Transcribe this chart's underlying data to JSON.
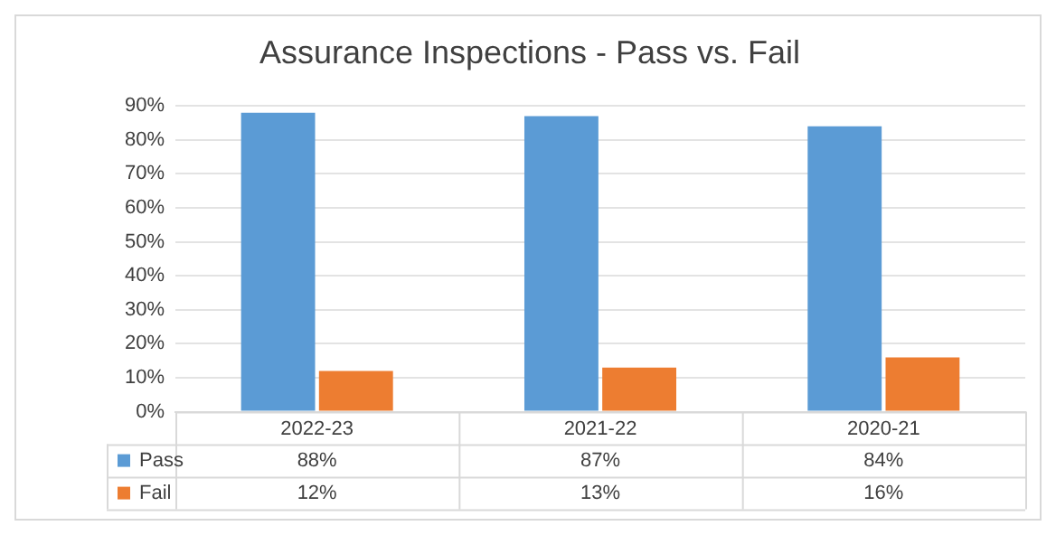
{
  "chart_data": {
    "type": "bar",
    "title": "Assurance Inspections - Pass vs. Fail",
    "categories": [
      "2022-23",
      "2021-22",
      "2020-21"
    ],
    "series": [
      {
        "name": "Pass",
        "color": "#5b9bd5",
        "values": [
          88,
          87,
          84
        ],
        "value_labels": [
          "88%",
          "87%",
          "84%"
        ]
      },
      {
        "name": "Fail",
        "color": "#ed7d31",
        "values": [
          12,
          13,
          16
        ],
        "value_labels": [
          "12%",
          "13%",
          "16%"
        ]
      }
    ],
    "ylim": [
      0,
      90
    ],
    "yticks": [
      {
        "value": 0,
        "label": "0%"
      },
      {
        "value": 10,
        "label": "10%"
      },
      {
        "value": 20,
        "label": "20%"
      },
      {
        "value": 30,
        "label": "30%"
      },
      {
        "value": 40,
        "label": "40%"
      },
      {
        "value": 50,
        "label": "50%"
      },
      {
        "value": 60,
        "label": "60%"
      },
      {
        "value": 70,
        "label": "70%"
      },
      {
        "value": 80,
        "label": "80%"
      },
      {
        "value": 90,
        "label": "90%"
      }
    ],
    "grid": "y",
    "legend": "bottom"
  }
}
